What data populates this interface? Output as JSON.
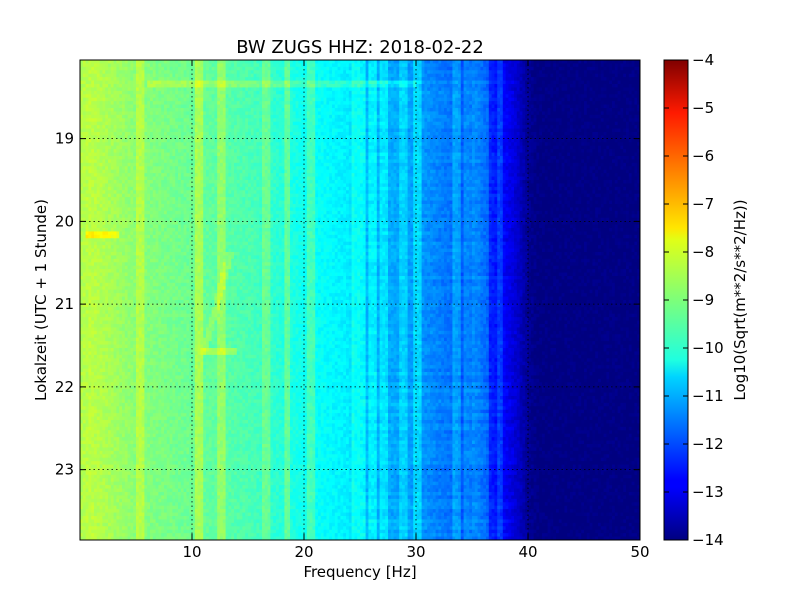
{
  "chart_data": {
    "type": "heatmap",
    "title": "BW ZUGS HHZ: 2018-02-22",
    "xlabel": "Frequency [Hz]",
    "ylabel": "Lokalzeit (UTC + 1 Stunde)",
    "xlim": [
      0,
      50
    ],
    "ylim": [
      18.05,
      23.85
    ],
    "y_inverted": true,
    "x_ticks": [
      10,
      20,
      30,
      40,
      50
    ],
    "x_tick_labels": [
      "10",
      "20",
      "30",
      "40",
      "50"
    ],
    "y_ticks": [
      19,
      20,
      21,
      22,
      23
    ],
    "y_tick_labels": [
      "19",
      "20",
      "21",
      "22",
      "23"
    ],
    "grid": true,
    "colormap": "jet",
    "colorbar": {
      "label": "Log10(Sqrt(m**2/s**2/Hz))",
      "range": [
        -14,
        -4
      ],
      "ticks": [
        -4,
        -5,
        -6,
        -7,
        -8,
        -9,
        -10,
        -11,
        -12,
        -13,
        -14
      ],
      "tick_labels": [
        "−4",
        "−5",
        "−6",
        "−7",
        "−8",
        "−9",
        "−10",
        "−11",
        "−12",
        "−13",
        "−14"
      ]
    },
    "spectral_profile": {
      "frequency_hz": [
        0,
        1,
        5,
        10,
        15,
        20,
        24,
        25,
        27,
        30,
        33,
        35,
        36,
        37,
        38,
        39,
        40,
        41,
        50
      ],
      "level": [
        -8.5,
        -8.4,
        -8.9,
        -9.2,
        -9.5,
        -10.1,
        -10.4,
        -10.9,
        -11.0,
        -11.2,
        -11.6,
        -12.0,
        -12.2,
        -12.5,
        -12.8,
        -13.2,
        -13.8,
        -14.0,
        -14.0
      ]
    },
    "narrowband_lines_hz": [
      5.3,
      10.6,
      12.7,
      16.7,
      18.5,
      20.6,
      24.6,
      25.2,
      26.2,
      27.2,
      28.8,
      30.1,
      33.6,
      34.7,
      35.4,
      36.1,
      37.5
    ],
    "transient_events": [
      {
        "time": 18.35,
        "freq_range": [
          6,
          30
        ],
        "delta": 0.5
      },
      {
        "time": 20.15,
        "freq_range": [
          0.5,
          3.5
        ],
        "delta": 0.8
      },
      {
        "time": 21.58,
        "freq_range": [
          11,
          14
        ],
        "delta": 0.6
      }
    ],
    "sweep_line": {
      "start": [
        13.5,
        20.35
      ],
      "end": [
        11.0,
        21.6
      ],
      "delta": 0.45
    }
  }
}
